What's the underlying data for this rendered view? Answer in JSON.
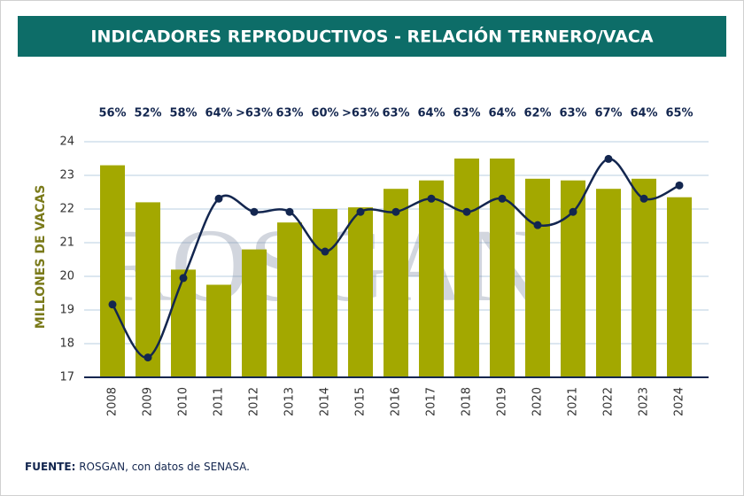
{
  "header": {
    "title": "INDICADORES REPRODUCTIVOS - RELACIÓN TERNERO/VACA"
  },
  "chart_data": {
    "type": "bar",
    "y_label": "MILLONES DE VACAS",
    "watermark": "ROSGAN",
    "categories": [
      "2008",
      "2009",
      "2010",
      "2011",
      "2012",
      "2013",
      "2014",
      "2015",
      "2016",
      "2017",
      "2018",
      "2019",
      "2020",
      "2021",
      "2022",
      "2023",
      "2024"
    ],
    "series": [
      {
        "type": "bar",
        "color": "#a3a800",
        "values": [
          23.3,
          22.2,
          20.2,
          19.75,
          20.8,
          21.6,
          22.0,
          22.05,
          22.6,
          22.85,
          23.5,
          23.5,
          22.9,
          22.85,
          22.6,
          22.9,
          22.35
        ]
      },
      {
        "type": "line",
        "axis": "y2",
        "color": "#13264f",
        "values": [
          56,
          52,
          58,
          64,
          63,
          63,
          60,
          63,
          63,
          64,
          63,
          64,
          62,
          63,
          67,
          64,
          65
        ],
        "value_labels": [
          "56%",
          "52%",
          "58%",
          "64%",
          ">63%",
          "63%",
          "60%",
          ">63%",
          "63%",
          "64%",
          "63%",
          "64%",
          "62%",
          "63%",
          "67%",
          "64%",
          "65%"
        ]
      }
    ],
    "ylim": [
      17,
      24
    ],
    "yticks": [
      17,
      18,
      19,
      20,
      21,
      22,
      23,
      24
    ],
    "y2lim": [
      50.5,
      68.3
    ],
    "grid": true
  },
  "footer": {
    "label": "FUENTE:",
    "text": " ROSGAN, con datos de SENASA."
  }
}
